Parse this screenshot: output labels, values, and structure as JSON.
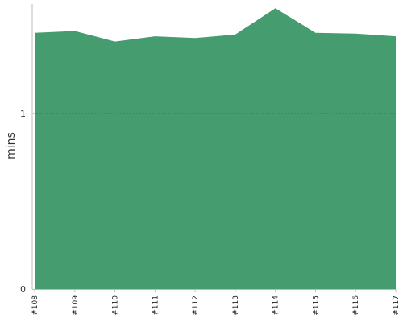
{
  "chart_data": {
    "type": "area",
    "title": "",
    "xlabel": "",
    "ylabel": "mins",
    "categories": [
      "#108",
      "#109",
      "#110",
      "#111",
      "#112",
      "#113",
      "#114",
      "#115",
      "#116",
      "#117"
    ],
    "series": [
      {
        "values": [
          1.46,
          1.47,
          1.41,
          1.44,
          1.43,
          1.45,
          1.6,
          1.46,
          1.455,
          1.44
        ]
      }
    ],
    "yticks": [
      0,
      1
    ],
    "ytick_labels": [
      "0",
      "1"
    ],
    "ylim": [
      0,
      1.61
    ],
    "grid": "dashed line at 1",
    "legend": "none",
    "colors": {
      "area": "#459c6e",
      "gridline": "#2e6f4c",
      "axis": "#bbbbbb"
    }
  }
}
